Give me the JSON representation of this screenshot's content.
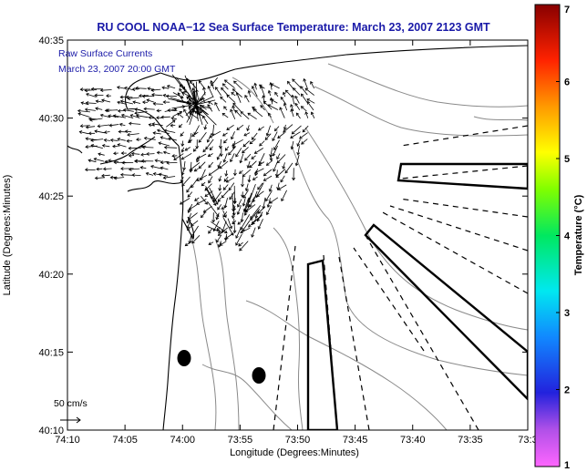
{
  "title": "RU COOL  NOAA−12  Sea Surface Temperature:  March 23, 2007 2123 GMT",
  "overlay": {
    "line1": "Raw Surface Currents",
    "line2": "March 23, 2007 20:00 GMT"
  },
  "axes": {
    "xlabel": "Longitude (Degrees:Minutes)",
    "ylabel": "Latitude (Degrees:Minutes)",
    "xticks": [
      "74:10",
      "74:05",
      "74:00",
      "73:55",
      "73:50",
      "73:45",
      "73:40",
      "73:35",
      "73:3"
    ],
    "yticks": [
      "40:35",
      "40:30",
      "40:25",
      "40:20",
      "40:15",
      "40:10"
    ]
  },
  "colorbar": {
    "label": "Temperature (°C)",
    "ticks": [
      "7",
      "6",
      "5",
      "4",
      "3",
      "2",
      "1"
    ],
    "range": [
      1,
      7
    ]
  },
  "scale_bar": {
    "label": "50 cm/s"
  },
  "colors": {
    "title": "#1a1aa8",
    "coast": "#000000",
    "bathymetry": "#8a8a8a",
    "frame": "#000000"
  }
}
